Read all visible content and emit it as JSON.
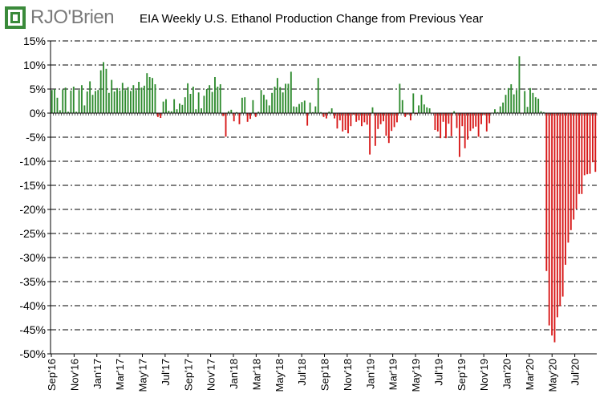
{
  "header": {
    "logo_text": "RJO'Brien",
    "title": "EIA Weekly U.S. Ethanol Production Change from Previous Year"
  },
  "colors": {
    "positive": "#2e8b2e",
    "negative": "#d81818",
    "grid": "#000000",
    "logo_green": "#3a8a3a",
    "logo_gray": "#7a7a7a"
  },
  "chart_data": {
    "type": "bar",
    "title": "EIA Weekly U.S. Ethanol Production Change from Previous Year",
    "xlabel": "",
    "ylabel": "",
    "ylim": [
      -50,
      15
    ],
    "y_ticks": [
      15,
      10,
      5,
      0,
      -5,
      -10,
      -15,
      -20,
      -25,
      -30,
      -35,
      -40,
      -45,
      -50
    ],
    "y_tick_labels": [
      "15%",
      "10%",
      "5%",
      "0%",
      "-5%",
      "-10%",
      "-15%",
      "-20%",
      "-25%",
      "-30%",
      "-35%",
      "-40%",
      "-45%",
      "-50%"
    ],
    "grid": true,
    "x_tick_labels": [
      "Sep'16",
      "Nov'16",
      "Jan'17",
      "Mar'17",
      "May'17",
      "Jul'17",
      "Sep'17",
      "Nov'17",
      "Jan'18",
      "Mar'18",
      "May'18",
      "Jul'18",
      "Sep'18",
      "Nov'18",
      "Jan'19",
      "Mar'19",
      "May'19",
      "Jul'19",
      "Sep'19",
      "Nov'19",
      "Jan'20",
      "Mar'20",
      "May'20",
      "Jul'20"
    ],
    "start_date": "2016-09-02",
    "interval_days": 7,
    "values": [
      4.8,
      5.0,
      3.2,
      0.6,
      4.9,
      5.3,
      0.3,
      4.7,
      5.5,
      0.3,
      4.8,
      5.8,
      1.6,
      4.5,
      6.6,
      3.8,
      4.6,
      4.8,
      8.9,
      10.6,
      9.2,
      4.2,
      6.9,
      4.5,
      5.2,
      4.7,
      6.3,
      4.8,
      5.4,
      4.6,
      5.8,
      4.8,
      6.5,
      5.3,
      5.7,
      8.3,
      7.5,
      7.3,
      6.0,
      -0.8,
      -1.0,
      2.4,
      2.9,
      0.5,
      0.4,
      2.9,
      0.8,
      2.0,
      1.7,
      3.3,
      6.2,
      4.0,
      5.5,
      0.8,
      4.3,
      1.0,
      3.6,
      5.0,
      5.8,
      4.4,
      7.5,
      5.5,
      6.0,
      -0.6,
      -4.9,
      0.4,
      0.7,
      -1.7,
      0.2,
      -2.3,
      3.2,
      3.3,
      -1.8,
      -1.2,
      2.7,
      -0.8,
      0.3,
      4.8,
      3.8,
      2.8,
      1.6,
      4.2,
      5.5,
      7.3,
      5.4,
      4.3,
      6.1,
      6.1,
      8.6,
      1.4,
      1.3,
      1.9,
      2.3,
      2.6,
      -2.6,
      2.2,
      0.2,
      1.4,
      7.3,
      0.2,
      -0.8,
      -1.1,
      0.3,
      1.0,
      -1.1,
      -3.2,
      -1.5,
      -3.8,
      -3.5,
      -4.2,
      -2.7,
      -0.3,
      -1.8,
      -1.5,
      -2.7,
      -1.9,
      -2.4,
      -8.6,
      1.2,
      -6.8,
      -3.3,
      -2.3,
      -1.7,
      -4.7,
      -6.2,
      -3.7,
      -2.9,
      -1.9,
      6.1,
      2.7,
      -0.8,
      -0.3,
      -1.5,
      4.1,
      -0.2,
      1.6,
      3.8,
      1.8,
      1.2,
      1.0,
      -0.1,
      -3.5,
      -3.8,
      -5.2,
      -1.8,
      -5.2,
      -2.2,
      -4.8,
      0.4,
      -3.1,
      -9.1,
      -2.7,
      -7.3,
      -5.5,
      -3.7,
      -3.2,
      -2.8,
      -4.9,
      -2.3,
      -0.4,
      -3.8,
      -2.1,
      0.1,
      0.8,
      0.2,
      1.4,
      2.2,
      3.8,
      5.2,
      6.0,
      3.9,
      4.8,
      11.8,
      -0.1,
      4.6,
      1.3,
      5.2,
      4.2,
      3.3,
      3.0,
      0.4,
      0.2,
      -32.8,
      -44.1,
      -46.2,
      -47.6,
      -42.4,
      -40.1,
      -38.1,
      -31.5,
      -26.9,
      -24.3,
      -22.1,
      -19.9,
      -16.8,
      -16.8,
      -12.9,
      -12.7,
      -12.6,
      -10.2,
      -12.2
    ]
  }
}
